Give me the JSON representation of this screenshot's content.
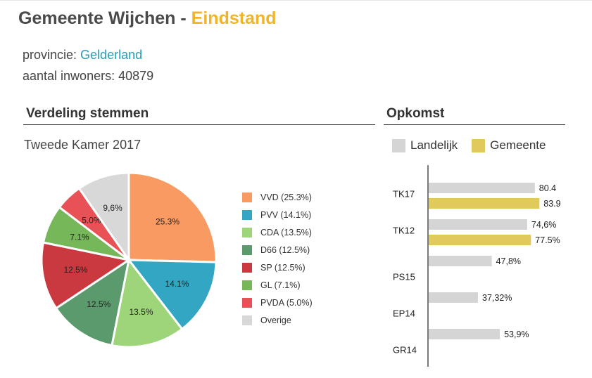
{
  "header": {
    "title_main": "Gemeente Wijchen - ",
    "title_accent": "Eindstand",
    "provincie_label": "provincie: ",
    "provincie_value": "Gelderland",
    "inwoners_text": "aantal inwoners: 40879"
  },
  "sections": {
    "votes_title": "Verdeling stemmen",
    "turnout_title": "Opkomst",
    "election_label": "Tweede Kamer 2017"
  },
  "colors": {
    "accent": "#f0b429",
    "link": "#2a9bb5",
    "landelijk": "#d5d5d5",
    "gemeente": "#e2c95c"
  },
  "chart_data": [
    {
      "type": "pie",
      "title": "Tweede Kamer 2017",
      "slices": [
        {
          "name": "VVD",
          "legend": "VVD (25.3%)",
          "value": 25.3,
          "label": "25.3%",
          "color": "#f99a63"
        },
        {
          "name": "PVV",
          "legend": "PVV (14.1%)",
          "value": 14.1,
          "label": "14.1%",
          "color": "#33a6c4"
        },
        {
          "name": "CDA",
          "legend": "CDA (13.5%)",
          "value": 13.5,
          "label": "13.5%",
          "color": "#9ed57a"
        },
        {
          "name": "D66",
          "legend": "D66 (12.5%)",
          "value": 12.5,
          "label": "12.5%",
          "color": "#5b9a6c"
        },
        {
          "name": "SP",
          "legend": "SP (12.5%)",
          "value": 12.5,
          "label": "12.5%",
          "color": "#c9393f"
        },
        {
          "name": "GL",
          "legend": "GL (7.1%)",
          "value": 7.1,
          "label": "7.1%",
          "color": "#76b75a"
        },
        {
          "name": "PVDA",
          "legend": "PVDA (5.0%)",
          "value": 5.0,
          "label": "5.0%",
          "color": "#e85156"
        },
        {
          "name": "Overige",
          "legend": "Overige",
          "value": 9.6,
          "label": "9,6%",
          "color": "#d8d8d8"
        }
      ]
    },
    {
      "type": "bar",
      "title": "Opkomst",
      "orientation": "horizontal",
      "series": [
        {
          "name": "Landelijk",
          "color": "#d5d5d5"
        },
        {
          "name": "Gemeente",
          "color": "#e2c95c"
        }
      ],
      "categories": [
        {
          "name": "TK17",
          "bars": [
            {
              "series": "Landelijk",
              "value": 80.4,
              "label": "80.4"
            },
            {
              "series": "Gemeente",
              "value": 83.9,
              "label": "83.9"
            }
          ]
        },
        {
          "name": "TK12",
          "bars": [
            {
              "series": "Landelijk",
              "value": 74.6,
              "label": "74,6%"
            },
            {
              "series": "Gemeente",
              "value": 77.5,
              "label": "77.5%"
            }
          ]
        },
        {
          "name": "PS15",
          "bars": [
            {
              "series": "Landelijk",
              "value": 47.8,
              "label": "47,8%"
            }
          ]
        },
        {
          "name": "EP14",
          "bars": [
            {
              "series": "Landelijk",
              "value": 37.32,
              "label": "37,32%"
            }
          ]
        },
        {
          "name": "GR14",
          "bars": [
            {
              "series": "Landelijk",
              "value": 53.9,
              "label": "53,9%"
            }
          ]
        }
      ],
      "xlim": [
        0,
        100
      ]
    }
  ]
}
